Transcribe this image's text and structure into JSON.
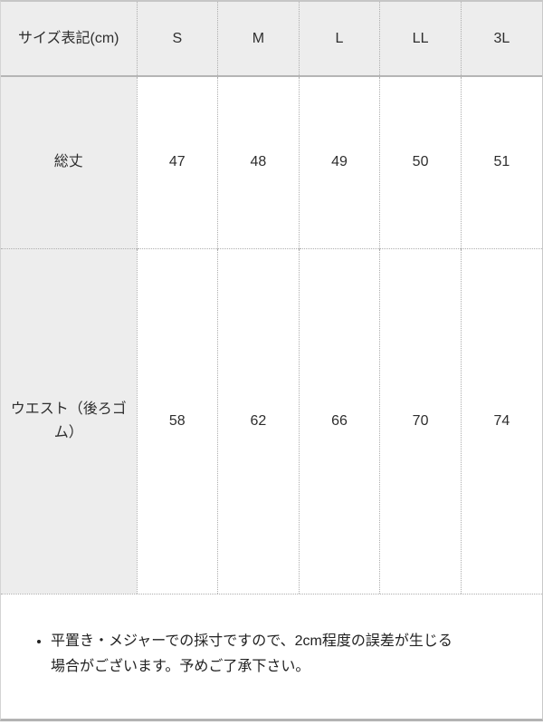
{
  "colors": {
    "header_bg": "#ededed",
    "solid_border": "#b5b5b5",
    "dotted_border": "#adadad",
    "text": "#2e2e2e"
  },
  "size_table": {
    "header": [
      "サイズ表記(cm)",
      "S",
      "M",
      "L",
      "LL",
      "3L"
    ],
    "rows": [
      {
        "label": "総丈",
        "values": [
          "47",
          "48",
          "49",
          "50",
          "51"
        ]
      },
      {
        "label": "ウエスト（後ろゴム）",
        "values": [
          "58",
          "62",
          "66",
          "70",
          "74"
        ]
      }
    ]
  },
  "note": {
    "items": [
      "平置き・メジャーでの採寸ですので、2cm程度の誤差が生じる場合がございます。予めご了承下さい。"
    ]
  }
}
